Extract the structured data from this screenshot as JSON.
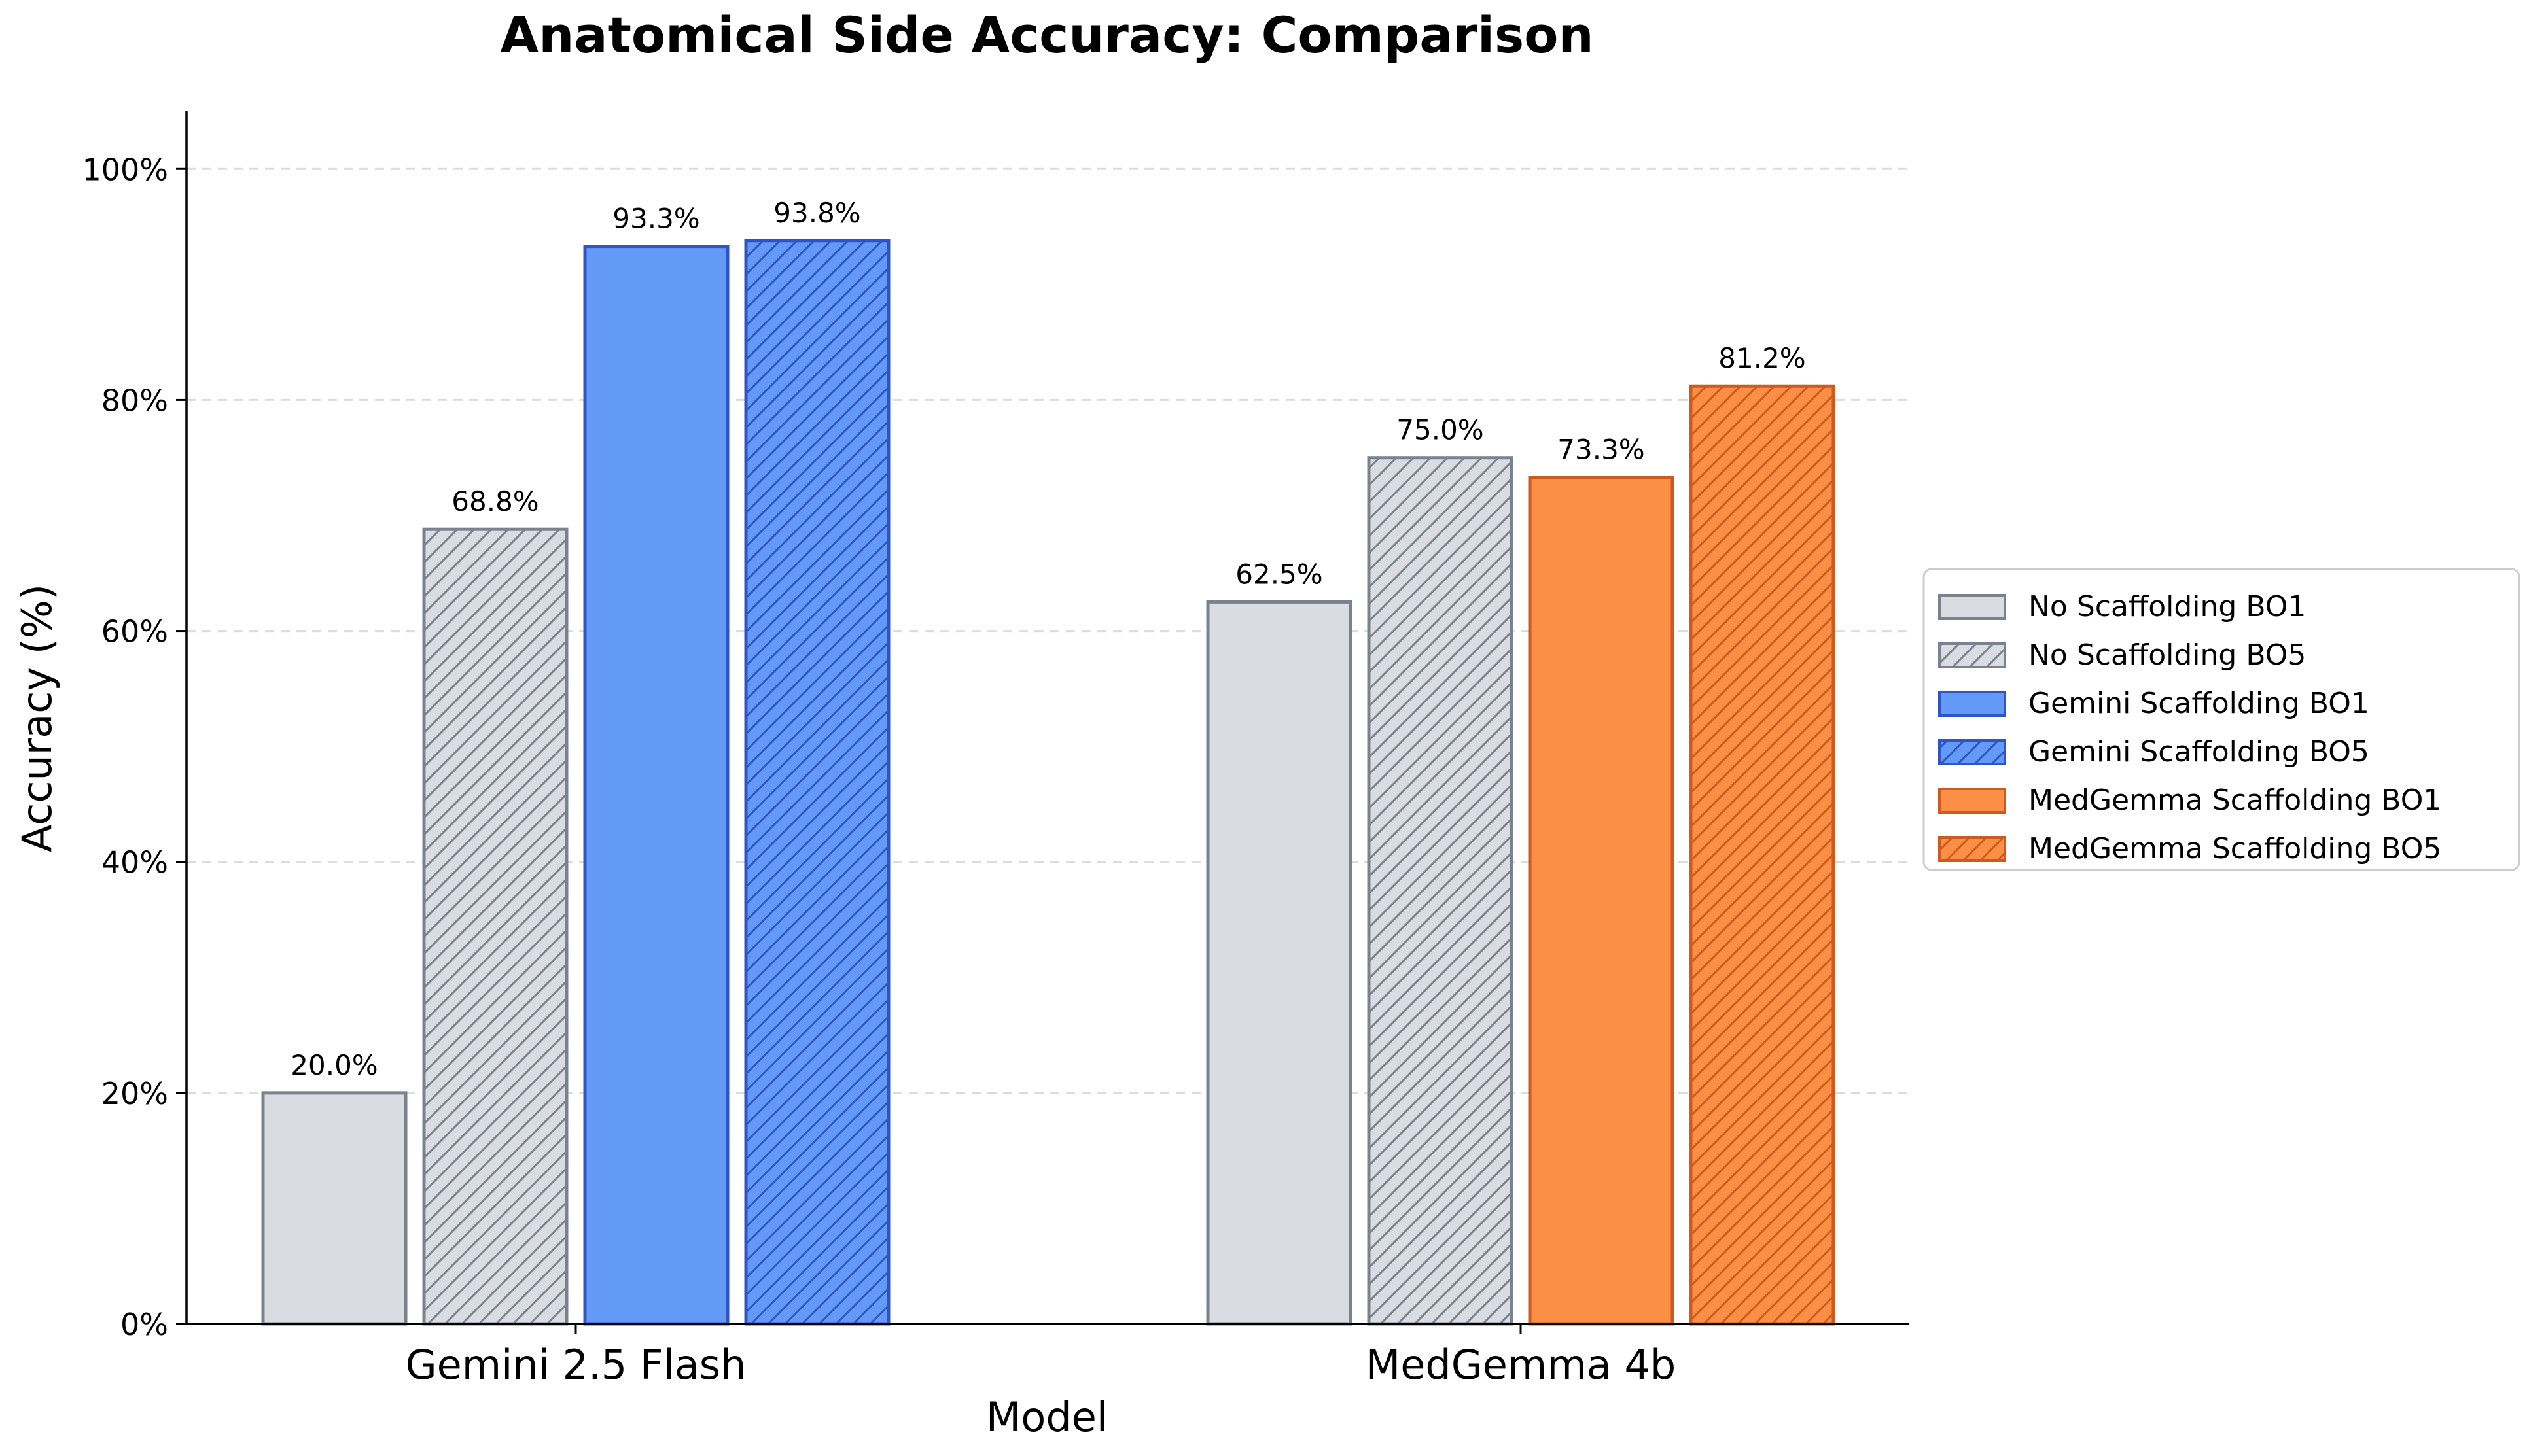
{
  "chart_data": {
    "type": "bar",
    "title": "Anatomical Side Accuracy: Comparison",
    "xlabel": "Model",
    "ylabel": "Accuracy (%)",
    "categories": [
      "Gemini 2.5 Flash",
      "MedGemma 4b"
    ],
    "ylim": [
      0,
      105
    ],
    "yticks": [
      0,
      20,
      40,
      60,
      80,
      100
    ],
    "ytick_labels": [
      "0%",
      "20%",
      "40%",
      "60%",
      "80%",
      "100%"
    ],
    "grid": "horizontal dashed",
    "legend_position": "right",
    "series": [
      {
        "name": "No Scaffolding BO1",
        "values": [
          20.0,
          62.5
        ],
        "value_labels": [
          "20.0%",
          "62.5%"
        ],
        "fill": "#d9dce0",
        "stroke": "#7a8290",
        "hatch": false
      },
      {
        "name": "No Scaffolding BO5",
        "values": [
          68.8,
          75.0
        ],
        "value_labels": [
          "68.8%",
          "75.0%"
        ],
        "fill": "#d9dce0",
        "stroke": "#7a8290",
        "hatch": true
      },
      {
        "name": "Gemini Scaffolding BO1",
        "values": [
          93.3,
          null
        ],
        "value_labels": [
          "93.3%",
          null
        ],
        "fill": "#6399f7",
        "stroke": "#2f55c4",
        "hatch": false
      },
      {
        "name": "Gemini Scaffolding BO5",
        "values": [
          93.8,
          null
        ],
        "value_labels": [
          "93.8%",
          null
        ],
        "fill": "#6399f7",
        "stroke": "#2f55c4",
        "hatch": true
      },
      {
        "name": "MedGemma Scaffolding BO1",
        "values": [
          null,
          73.3
        ],
        "value_labels": [
          null,
          "73.3%"
        ],
        "fill": "#fb8f45",
        "stroke": "#cf5a1f",
        "hatch": false
      },
      {
        "name": "MedGemma Scaffolding BO5",
        "values": [
          null,
          81.2
        ],
        "value_labels": [
          null,
          "81.2%"
        ],
        "fill": "#fb8f45",
        "stroke": "#cf5a1f",
        "hatch": true
      }
    ]
  }
}
